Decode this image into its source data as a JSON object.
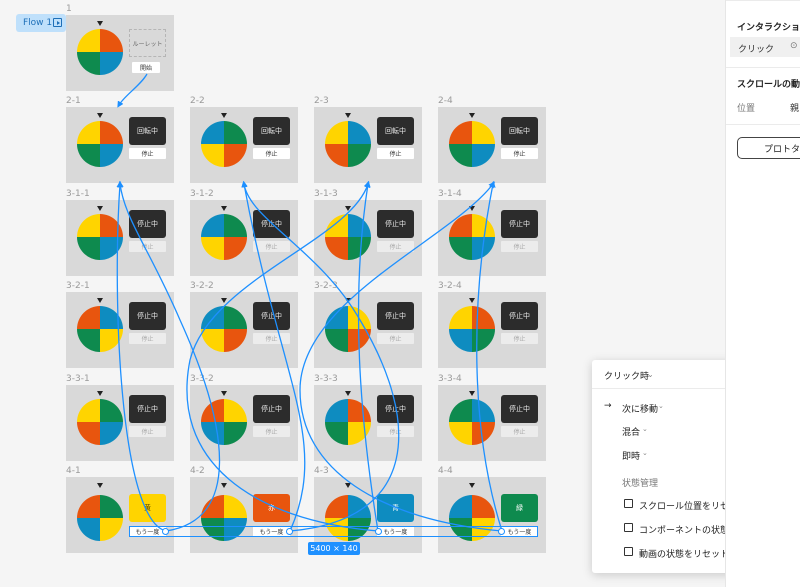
{
  "canvas": {
    "flow_tag": "Flow 1",
    "frames": [
      {
        "label": "1",
        "kind": "start",
        "wheel": "A",
        "placeholder": "ルーレット",
        "button": "開始",
        "dim": false
      },
      {
        "label": "2-1",
        "kind": "spin",
        "wheel": "A",
        "status": "回転中",
        "button": "停止",
        "dim": false
      },
      {
        "label": "2-2",
        "kind": "spin",
        "wheel": "B",
        "status": "回転中",
        "button": "停止",
        "dim": false
      },
      {
        "label": "2-3",
        "kind": "spin",
        "wheel": "C",
        "status": "回転中",
        "button": "停止",
        "dim": false
      },
      {
        "label": "2-4",
        "kind": "spin",
        "wheel": "D",
        "status": "回転中",
        "button": "停止",
        "dim": false
      },
      {
        "label": "3-1-1",
        "kind": "spin",
        "wheel": "A",
        "status": "停止中",
        "button": "停止",
        "dim": true
      },
      {
        "label": "3-1-2",
        "kind": "spin",
        "wheel": "B",
        "status": "停止中",
        "button": "停止",
        "dim": true
      },
      {
        "label": "3-1-3",
        "kind": "spin",
        "wheel": "C",
        "status": "停止中",
        "button": "停止",
        "dim": true
      },
      {
        "label": "3-1-4",
        "kind": "spin",
        "wheel": "D",
        "status": "停止中",
        "button": "停止",
        "dim": true
      },
      {
        "label": "3-2-1",
        "kind": "spin",
        "wheel": "E",
        "status": "停止中",
        "button": "停止",
        "dim": true
      },
      {
        "label": "3-2-2",
        "kind": "spin",
        "wheel": "F",
        "status": "停止中",
        "button": "停止",
        "dim": true
      },
      {
        "label": "3-2-3",
        "kind": "spin",
        "wheel": "G",
        "status": "停止中",
        "button": "停止",
        "dim": true
      },
      {
        "label": "3-2-4",
        "kind": "spin",
        "wheel": "H",
        "status": "停止中",
        "button": "停止",
        "dim": true
      },
      {
        "label": "3-3-1",
        "kind": "spin",
        "wheel": "I",
        "status": "停止中",
        "button": "停止",
        "dim": true
      },
      {
        "label": "3-3-2",
        "kind": "spin",
        "wheel": "J",
        "status": "停止中",
        "button": "停止",
        "dim": true
      },
      {
        "label": "3-3-3",
        "kind": "spin",
        "wheel": "K",
        "status": "停止中",
        "button": "停止",
        "dim": true
      },
      {
        "label": "3-3-4",
        "kind": "spin",
        "wheel": "L",
        "status": "停止中",
        "button": "停止",
        "dim": true
      },
      {
        "label": "4-1",
        "kind": "result",
        "wheel": "M",
        "result": "黄",
        "result_color": "#FFD400",
        "button": "もう一度"
      },
      {
        "label": "4-2",
        "kind": "result",
        "wheel": "N",
        "result": "赤",
        "result_color": "#E8550E",
        "button": "もう一度"
      },
      {
        "label": "4-3",
        "kind": "result",
        "wheel": "O",
        "result": "青",
        "result_color": "#0E8CC0",
        "button": "もう一度"
      },
      {
        "label": "4-4",
        "kind": "result",
        "wheel": "P",
        "result": "緑",
        "result_color": "#0E8A4E",
        "button": "もう一度"
      }
    ],
    "selection_size": "5400 × 140",
    "colors": {
      "red": "#E8550E",
      "blue": "#0E8CC0",
      "yellow": "#FFD400",
      "green": "#0E8A4E",
      "connector": "#1E90FF"
    }
  },
  "popover": {
    "trigger": "クリック時",
    "action": "次に移動",
    "animation": "混合",
    "timing": "即時",
    "state_heading": "状態管理",
    "options": [
      "スクロール位置をリセット",
      "コンポーネントの状態をリセット",
      "動画の状態をリセット"
    ]
  },
  "right_panel": {
    "interactions_title": "インタラクション",
    "click_label": "クリック",
    "scroll_title": "スクロールの動作",
    "position_label": "位置",
    "position_value": "親",
    "prototype_button": "プロトタイ"
  }
}
